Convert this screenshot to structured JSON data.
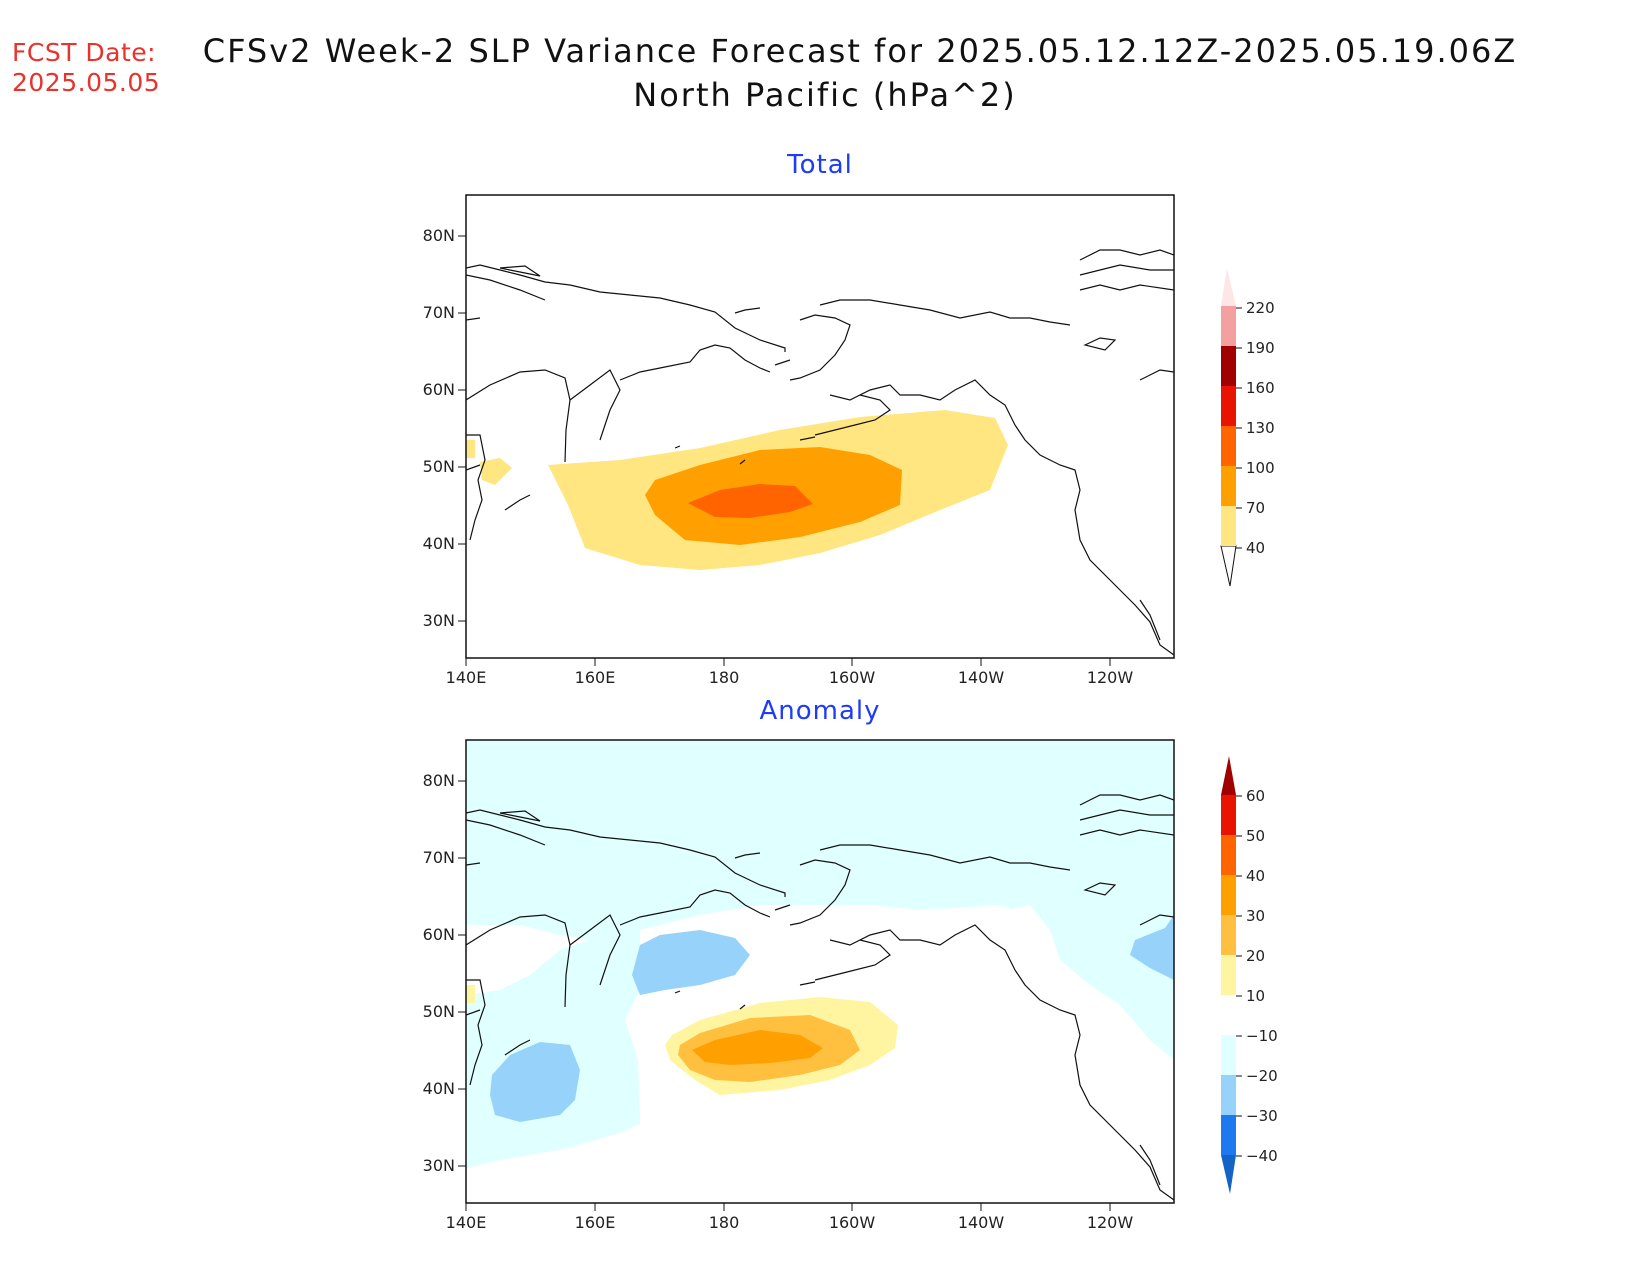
{
  "header": {
    "fcst_label": "FCST Date:",
    "fcst_date": "2025.05.05",
    "title_line1": "CFSv2 Week-2 SLP Variance Forecast for 2025.05.12.12Z-2025.05.19.06Z",
    "title_line2": "North Pacific (hPa^2)"
  },
  "panels": [
    {
      "title": "Total",
      "lat_ticks": [
        "80N",
        "70N",
        "60N",
        "50N",
        "40N",
        "30N"
      ],
      "lon_ticks": [
        "140E",
        "160E",
        "180",
        "160W",
        "140W",
        "120W"
      ],
      "colorbar": {
        "levels": [
          "40",
          "70",
          "100",
          "130",
          "160",
          "190",
          "220"
        ],
        "colors": [
          "#ffe680",
          "#ffa000",
          "#ff6400",
          "#e81400",
          "#a00000",
          "#f4a0a0",
          "#fde6e6"
        ]
      }
    },
    {
      "title": "Anomaly",
      "lat_ticks": [
        "80N",
        "70N",
        "60N",
        "50N",
        "40N",
        "30N"
      ],
      "lon_ticks": [
        "140E",
        "160E",
        "180",
        "160W",
        "140W",
        "120W"
      ],
      "colorbar": {
        "levels": [
          "60",
          "50",
          "40",
          "30",
          "20",
          "10",
          "−10",
          "−20",
          "−30",
          "−40"
        ],
        "colors": [
          "#a00000",
          "#e81400",
          "#ff6400",
          "#ffa000",
          "#ffc040",
          "#fff5a0",
          "#ffffff",
          "#e0ffff",
          "#96d2fa",
          "#1e78f0",
          "#1464c8"
        ]
      }
    }
  ],
  "colors": {
    "fcst": "#e8322c",
    "panel_title": "#1f3cf5"
  }
}
